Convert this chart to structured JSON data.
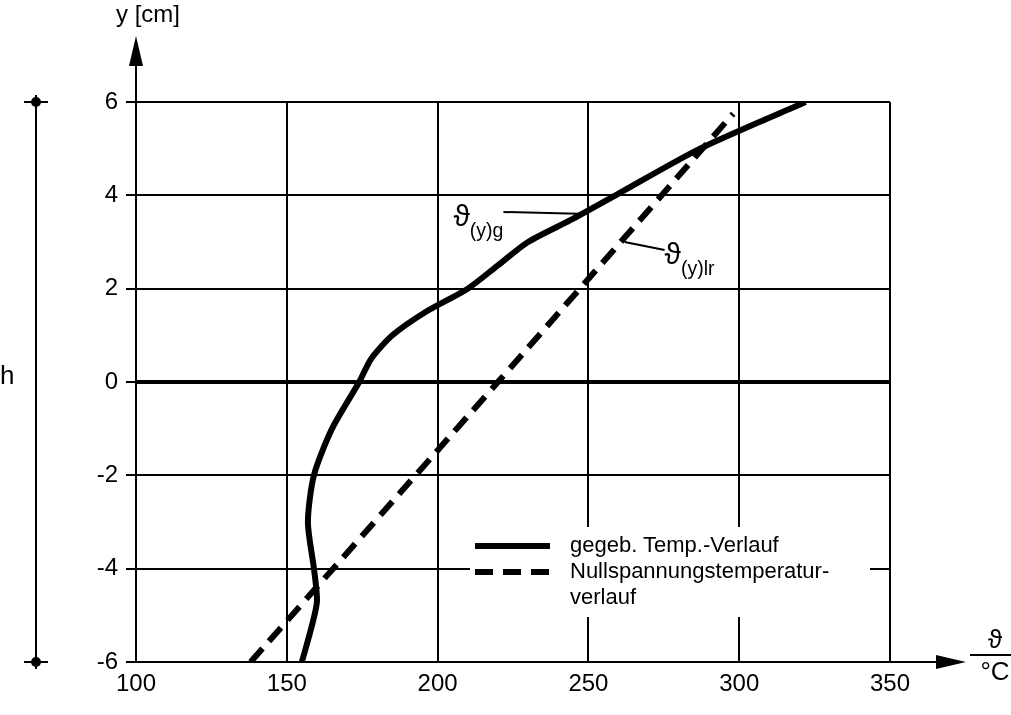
{
  "chart_data": {
    "type": "line",
    "xlabel": "ϑ °C",
    "ylabel": "y [cm]",
    "xlim": [
      100,
      350
    ],
    "xticks": [
      100,
      150,
      200,
      250,
      300,
      350
    ],
    "ylim": [
      -6,
      6
    ],
    "yticks": [
      -6,
      -4,
      -2,
      0,
      2,
      4,
      6
    ],
    "grid": true,
    "legend": "bottom right",
    "marker": "none",
    "ref_lines": [
      {
        "axis": "y",
        "value": 0,
        "color": "#000000"
      }
    ],
    "annotations": [
      {
        "text": "ϑ$_{(y)g}$",
        "x": 250,
        "y": 3.6
      },
      {
        "text": "ϑ$_{(y)lr}$",
        "x": 262,
        "y": 3
      },
      "h"
    ],
    "series": [
      {
        "name": "gegeb. Temp.-Verlauf",
        "color": "#000000",
        "line_style": "solid",
        "x": [
          155,
          158,
          160,
          159,
          157,
          159,
          165,
          174,
          178,
          185,
          196,
          210,
          220,
          230,
          245,
          259,
          287,
          322
        ],
        "values": [
          -6,
          -5.3,
          -4.7,
          -4,
          -3,
          -2,
          -1,
          0,
          0.5,
          1,
          1.5,
          2,
          2.5,
          3,
          3.5,
          4,
          5,
          6
        ]
      },
      {
        "name": "Nullspannungstemperatur-verlauf",
        "color": "#000000",
        "line_style": "dashed",
        "x": [
          138,
          220,
          298
        ],
        "values": [
          -6,
          0,
          5.75
        ]
      }
    ]
  }
}
